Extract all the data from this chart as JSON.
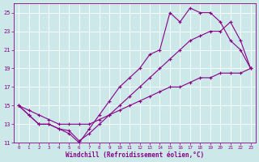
{
  "xlabel": "Windchill (Refroidissement éolien,°C)",
  "bg_color": "#cce8e8",
  "line_color": "#880088",
  "xlim": [
    -0.5,
    23.5
  ],
  "ylim": [
    11,
    26
  ],
  "yticks": [
    11,
    13,
    15,
    17,
    19,
    21,
    23,
    25
  ],
  "xticks": [
    0,
    1,
    2,
    3,
    4,
    5,
    6,
    7,
    8,
    9,
    10,
    11,
    12,
    13,
    14,
    15,
    16,
    17,
    18,
    19,
    20,
    21,
    22,
    23
  ],
  "line1_x": [
    0,
    1,
    2,
    3,
    4,
    5,
    6,
    7,
    8,
    9,
    10,
    11,
    12,
    13,
    14,
    15,
    16,
    17,
    18,
    19,
    20,
    21,
    22,
    23
  ],
  "line1_y": [
    15,
    14.5,
    14,
    13.5,
    13,
    13,
    13,
    13,
    13.5,
    14,
    14.5,
    15,
    15.5,
    16,
    16.5,
    17,
    17,
    17.5,
    18,
    18,
    18.5,
    18.5,
    18.5,
    19
  ],
  "line2_x": [
    0,
    1,
    2,
    3,
    4,
    5,
    6,
    7,
    8,
    9,
    10,
    11,
    12,
    13,
    14,
    15,
    16,
    17,
    18,
    19,
    20,
    21,
    22,
    23
  ],
  "line2_y": [
    15,
    14,
    13,
    13,
    12.5,
    12,
    11,
    12.5,
    14,
    15.5,
    17,
    18,
    19,
    20.5,
    21,
    25,
    24,
    25.5,
    25,
    25,
    24,
    22,
    21,
    19
  ],
  "line3_x": [
    0,
    1,
    2,
    3,
    4,
    5,
    6,
    7,
    8,
    9,
    10,
    11,
    12,
    13,
    14,
    15,
    16,
    17,
    18,
    19,
    20,
    21,
    22,
    23
  ],
  "line3_y": [
    15,
    14,
    13,
    13,
    12.5,
    12.3,
    11.2,
    12,
    13,
    14,
    15,
    16,
    17,
    18,
    19,
    20,
    21,
    22,
    22.5,
    23,
    23,
    24,
    22,
    19
  ]
}
